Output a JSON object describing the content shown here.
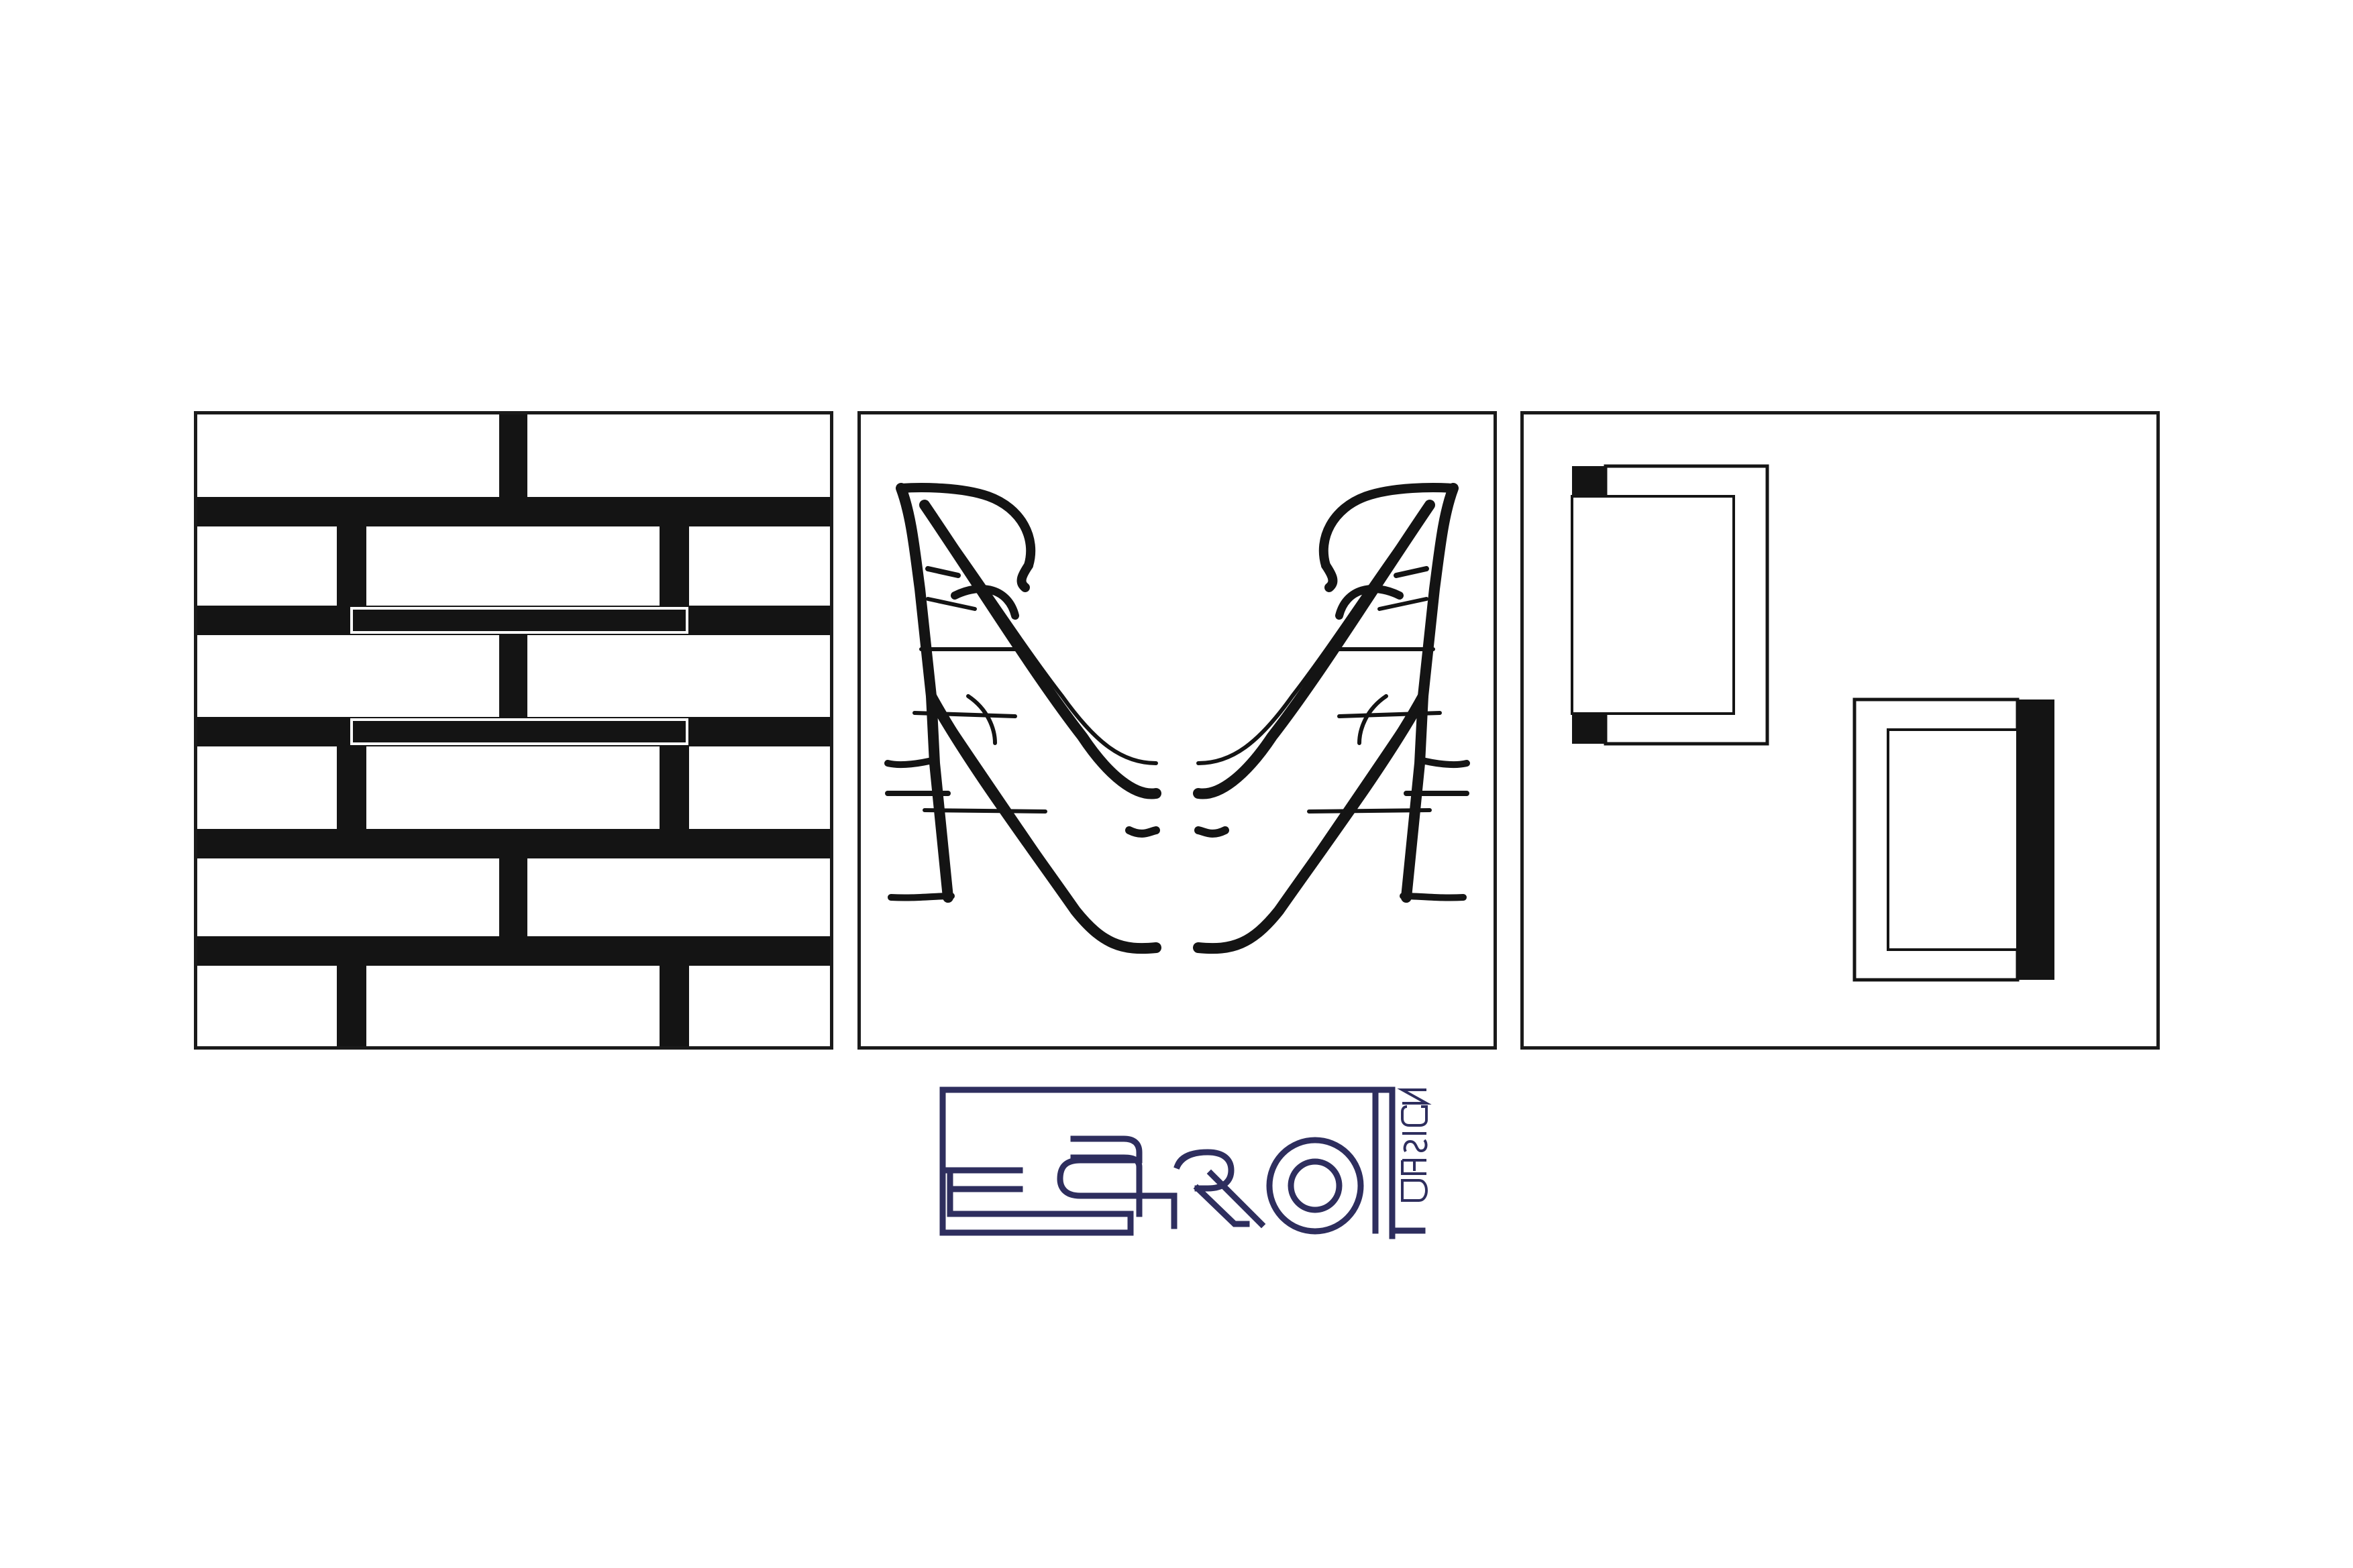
{
  "colors": {
    "line": "#141414",
    "logo": "#2e2e5e",
    "background": "#ffffff"
  },
  "logo": {
    "wordmark": "ESROL",
    "tagline": "DESIGN"
  }
}
